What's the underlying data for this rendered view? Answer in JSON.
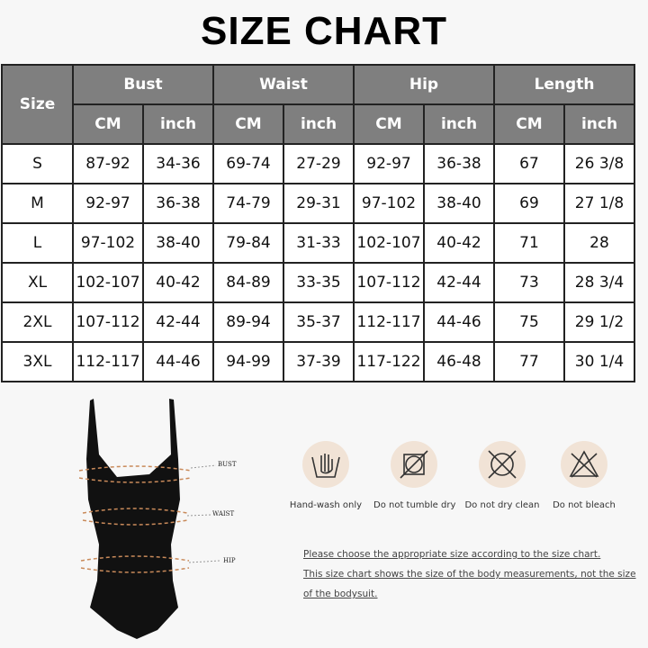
{
  "title": "SIZE CHART",
  "table": {
    "size_header": "Size",
    "groups": [
      "Bust",
      "Waist",
      "Hip",
      "Length"
    ],
    "units": [
      "CM",
      "inch",
      "CM",
      "inch",
      "CM",
      "inch",
      "CM",
      "inch"
    ],
    "rows": [
      [
        "S",
        "87-92",
        "34-36",
        "69-74",
        "27-29",
        "92-97",
        "36-38",
        "67",
        "26 3/8"
      ],
      [
        "M",
        "92-97",
        "36-38",
        "74-79",
        "29-31",
        "97-102",
        "38-40",
        "69",
        "27 1/8"
      ],
      [
        "L",
        "97-102",
        "38-40",
        "79-84",
        "31-33",
        "102-107",
        "40-42",
        "71",
        "28"
      ],
      [
        "XL",
        "102-107",
        "40-42",
        "84-89",
        "33-35",
        "107-112",
        "42-44",
        "73",
        "28 3/4"
      ],
      [
        "2XL",
        "107-112",
        "42-44",
        "89-94",
        "35-37",
        "112-117",
        "44-46",
        "75",
        "29 1/2"
      ],
      [
        "3XL",
        "112-117",
        "44-46",
        "94-99",
        "37-39",
        "117-122",
        "46-48",
        "77",
        "30 1/4"
      ]
    ]
  },
  "measure_labels": {
    "bust": "BUST",
    "waist": "WAIST",
    "hip": "HIP"
  },
  "care": [
    {
      "icon": "hand-wash-icon",
      "label": "Hand-wash only"
    },
    {
      "icon": "no-tumble-dry-icon",
      "label": "Do not tumble dry"
    },
    {
      "icon": "no-dry-clean-icon",
      "label": "Do not dry clean"
    },
    {
      "icon": "no-bleach-icon",
      "label": "Do not bleach"
    }
  ],
  "notes": [
    "Please choose the appropriate size according to the size chart.",
    "This size chart shows the size of the body measurements, not the size",
    "of the bodysuit."
  ],
  "colors": {
    "header_bg": "#7f7f7f",
    "icon_bg": "#f1e3d6"
  }
}
